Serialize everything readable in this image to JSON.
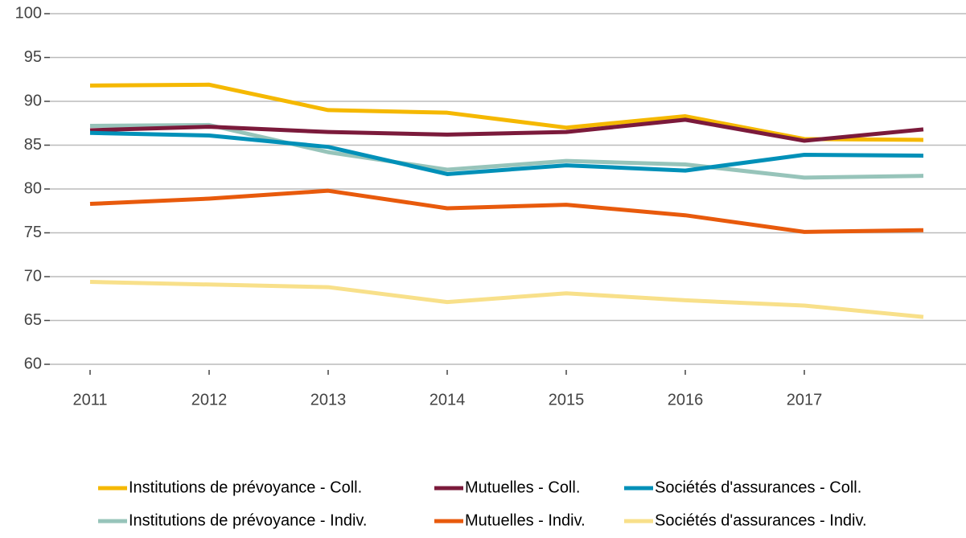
{
  "chart_data": {
    "type": "line",
    "categories": [
      "2011",
      "2012",
      "2013",
      "2014",
      "2015",
      "2016",
      "2017",
      null
    ],
    "series": [
      {
        "name": "Institutions de prévoyance - Coll.",
        "color": "#f5b800",
        "values": [
          91.8,
          91.9,
          89.0,
          88.7,
          87.0,
          88.3,
          85.7,
          85.6
        ]
      },
      {
        "name": "Mutuelles - Coll.",
        "color": "#7b1a3b",
        "values": [
          86.7,
          87.1,
          86.5,
          86.2,
          86.5,
          87.9,
          85.5,
          86.8
        ]
      },
      {
        "name": "Sociétés d'assurances - Coll.",
        "color": "#0090b8",
        "values": [
          86.4,
          86.1,
          84.8,
          81.7,
          82.7,
          82.1,
          83.9,
          83.8
        ]
      },
      {
        "name": "Institutions de prévoyance - Indiv.",
        "color": "#97c4ba",
        "values": [
          87.2,
          87.3,
          84.2,
          82.2,
          83.2,
          82.8,
          81.3,
          81.5
        ]
      },
      {
        "name": "Mutuelles - Indiv.",
        "color": "#e85a0c",
        "values": [
          78.3,
          78.9,
          79.8,
          77.8,
          78.2,
          77.0,
          75.1,
          75.3
        ]
      },
      {
        "name": "Sociétés d'assurances - Indiv.",
        "color": "#f8e08a",
        "values": [
          69.4,
          69.1,
          68.8,
          67.1,
          68.1,
          67.3,
          66.7,
          65.4
        ]
      }
    ],
    "ylim": [
      60,
      100
    ],
    "yticks": [
      60,
      65,
      70,
      75,
      80,
      85,
      90,
      95,
      100
    ],
    "grid": true,
    "legend": "bottom"
  }
}
